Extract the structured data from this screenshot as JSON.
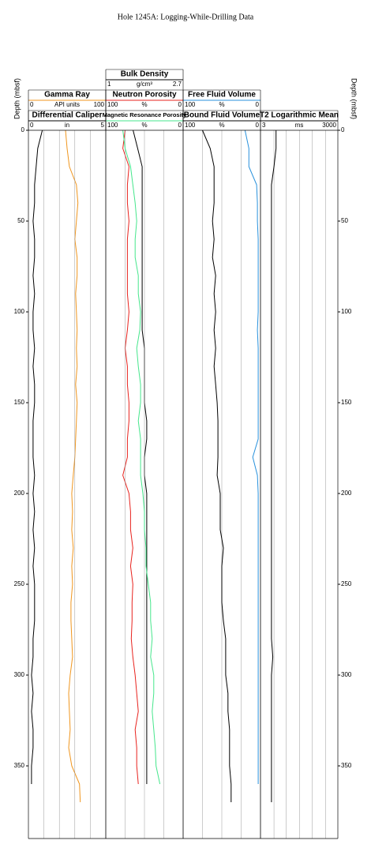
{
  "chart_data": {
    "type": "well-log",
    "title": "Hole 1245A: Logging-While-Drilling Data",
    "y_label": "Depth (mbsf)",
    "ylim": [
      0,
      390
    ],
    "yticks": [
      0,
      50,
      100,
      150,
      200,
      250,
      300,
      350
    ],
    "depths": [
      0,
      10,
      20,
      30,
      40,
      50,
      60,
      70,
      80,
      90,
      100,
      110,
      120,
      130,
      140,
      150,
      160,
      170,
      180,
      190,
      200,
      210,
      220,
      230,
      240,
      250,
      260,
      270,
      280,
      290,
      300,
      310,
      320,
      330,
      340,
      350,
      360,
      370,
      380
    ],
    "tracks": [
      {
        "curves": [
          {
            "name": "Gamma Ray",
            "unit": "API units",
            "xlim": [
              0,
              100
            ],
            "color": "#f0961e",
            "values": [
              48,
              50,
              53,
              62,
              64,
              62,
              60,
              63,
              63,
              61,
              62,
              63,
              62,
              63,
              61,
              63,
              62,
              61,
              60,
              58,
              56,
              57,
              56,
              58,
              56,
              57,
              55,
              55,
              56,
              57,
              54,
              52,
              53,
              54,
              52,
              56,
              66,
              67,
              null
            ]
          },
          {
            "name": "Differential Caliper",
            "unit": "in",
            "xlim": [
              0,
              5
            ],
            "color": "#000000",
            "xticks": [
              0,
              1,
              2,
              3,
              4,
              5
            ],
            "values": [
              0.9,
              0.6,
              0.5,
              0.4,
              0.4,
              0.3,
              0.4,
              0.4,
              0.3,
              0.4,
              0.3,
              0.3,
              0.4,
              0.3,
              0.4,
              0.4,
              0.3,
              0.3,
              0.3,
              0.4,
              0.3,
              0.4,
              0.3,
              0.4,
              0.3,
              0.4,
              0.4,
              0.4,
              0.3,
              0.3,
              0.2,
              0.3,
              0.2,
              0.3,
              0.3,
              0.2,
              0.2,
              null,
              null
            ]
          }
        ]
      },
      {
        "curves": [
          {
            "name": "Bulk Density",
            "unit": "g/cm³",
            "xlim": [
              1,
              2.7
            ],
            "color": "#000000",
            "values": [
              1.6,
              1.7,
              1.8,
              1.8,
              1.8,
              1.8,
              1.8,
              1.8,
              1.8,
              1.8,
              1.8,
              1.8,
              1.85,
              1.85,
              1.85,
              1.85,
              1.9,
              1.9,
              1.85,
              1.85,
              1.9,
              1.9,
              1.9,
              1.9,
              1.9,
              1.9,
              1.9,
              1.9,
              1.9,
              1.9,
              1.9,
              1.9,
              1.9,
              1.9,
              1.9,
              1.9,
              1.9,
              null,
              null
            ]
          },
          {
            "name": "Neutron Porosity",
            "unit": "%",
            "xlim": [
              100,
              0
            ],
            "color": "#e8231e",
            "values": [
              75,
              78,
              70,
              72,
              72,
              70,
              72,
              72,
              72,
              72,
              70,
              72,
              75,
              72,
              72,
              70,
              70,
              72,
              72,
              78,
              70,
              68,
              68,
              65,
              68,
              65,
              66,
              66,
              67,
              65,
              62,
              60,
              58,
              62,
              60,
              60,
              58,
              null,
              null
            ]
          },
          {
            "name": "Magnetic Resonance Porosity",
            "unit": "%",
            "xlim": [
              100,
              0
            ],
            "color": "#46e68c",
            "xticks": [
              100,
              75,
              50,
              25,
              0
            ],
            "values": [
              78,
              75,
              68,
              65,
              62,
              60,
              62,
              62,
              58,
              58,
              55,
              56,
              60,
              58,
              55,
              55,
              58,
              55,
              55,
              55,
              52,
              50,
              50,
              48,
              48,
              45,
              42,
              42,
              40,
              42,
              38,
              38,
              40,
              38,
              36,
              35,
              30,
              null,
              null
            ]
          }
        ]
      },
      {
        "curves": [
          {
            "name": "Free Fluid Volume",
            "unit": "%",
            "xlim": [
              100,
              0
            ],
            "color": "#2891dc",
            "values": [
              20,
              15,
              15,
              5,
              4,
              4,
              3,
              3,
              3,
              3,
              3,
              4,
              3,
              3,
              3,
              3,
              3,
              3,
              10,
              4,
              3,
              3,
              3,
              3,
              3,
              3,
              3,
              3,
              3,
              3,
              3,
              3,
              3,
              3,
              3,
              3,
              3,
              null,
              null
            ]
          },
          {
            "name": "Bound Fluid Volume",
            "unit": "%",
            "xlim": [
              100,
              0
            ],
            "color": "#000000",
            "xticks": [
              100,
              75,
              50,
              25,
              0
            ],
            "values": [
              75,
              65,
              60,
              60,
              60,
              62,
              60,
              62,
              58,
              60,
              58,
              60,
              58,
              60,
              58,
              56,
              55,
              55,
              55,
              56,
              52,
              52,
              52,
              48,
              50,
              50,
              50,
              48,
              45,
              45,
              45,
              42,
              42,
              40,
              40,
              40,
              38,
              38,
              null
            ]
          }
        ]
      },
      {
        "curves": [
          {
            "name": "T2 Logarithmic Mean",
            "unit": "ms",
            "xlim": [
              3,
              3000
            ],
            "log": true,
            "color": "#000000",
            "xticks": [
              3,
              10,
              30,
              100,
              300,
              1000,
              3000
            ],
            "values": [
              12,
              12,
              10,
              8,
              8,
              8,
              8,
              8,
              8,
              8,
              8,
              8,
              8,
              8,
              8,
              8,
              8,
              8,
              8,
              8,
              8,
              8,
              8,
              8,
              8,
              8,
              8,
              8,
              8,
              9,
              8,
              8,
              8,
              8,
              8,
              8,
              8,
              8,
              null
            ]
          }
        ]
      }
    ]
  }
}
